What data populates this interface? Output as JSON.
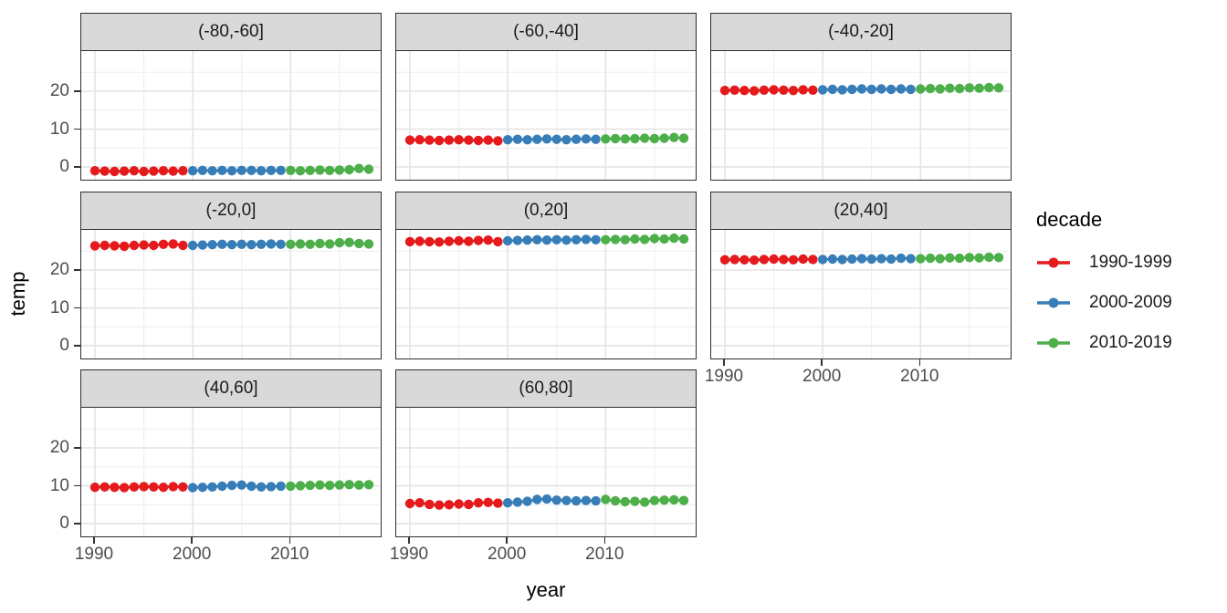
{
  "chart_data": {
    "type": "scatter",
    "title": "",
    "xlabel": "year",
    "ylabel": "temp",
    "x_ticks": [
      1990,
      2000,
      2010
    ],
    "y_ticks": [
      0,
      10,
      20
    ],
    "x_minor_ticks": [
      1995,
      2005,
      2015
    ],
    "y_minor_ticks": [
      5,
      15,
      25
    ],
    "x_domain": [
      1988.6,
      2019.4
    ],
    "y_domain": [
      -3.6,
      30.6
    ],
    "grid": true,
    "legend": {
      "title": "decade",
      "position": "right",
      "entries": [
        {
          "label": "1990-1999",
          "color": "#E41A1C",
          "from": 1990,
          "to": 1999
        },
        {
          "label": "2000-2009",
          "color": "#377EB8",
          "from": 2000,
          "to": 2009
        },
        {
          "label": "2010-2019",
          "color": "#4DAF4A",
          "from": 2010,
          "to": 2019
        }
      ]
    },
    "x": [
      1990,
      1991,
      1992,
      1993,
      1994,
      1995,
      1996,
      1997,
      1998,
      1999,
      2000,
      2001,
      2002,
      2003,
      2004,
      2005,
      2006,
      2007,
      2008,
      2009,
      2010,
      2011,
      2012,
      2013,
      2014,
      2015,
      2016,
      2017,
      2018
    ],
    "facets": [
      {
        "label": "(-80,-60]",
        "row": 0,
        "col": 0,
        "show_x_axis": false,
        "show_y_axis": true,
        "values": [
          -1.0,
          -1.1,
          -1.2,
          -1.1,
          -1.0,
          -1.2,
          -1.1,
          -1.0,
          -1.1,
          -1.0,
          -1.0,
          -0.9,
          -1.0,
          -0.9,
          -1.0,
          -0.9,
          -0.9,
          -1.0,
          -0.9,
          -0.9,
          -0.9,
          -1.0,
          -0.9,
          -0.8,
          -0.9,
          -0.8,
          -0.7,
          -0.4,
          -0.6
        ]
      },
      {
        "label": "(-60,-40]",
        "row": 0,
        "col": 1,
        "show_x_axis": false,
        "show_y_axis": false,
        "values": [
          7.1,
          7.2,
          7.1,
          7.0,
          7.1,
          7.2,
          7.1,
          7.0,
          7.1,
          6.9,
          7.2,
          7.3,
          7.2,
          7.3,
          7.4,
          7.3,
          7.2,
          7.3,
          7.4,
          7.3,
          7.4,
          7.5,
          7.4,
          7.5,
          7.6,
          7.5,
          7.6,
          7.8,
          7.6
        ]
      },
      {
        "label": "(-40,-20]",
        "row": 0,
        "col": 2,
        "show_x_axis": false,
        "show_y_axis": false,
        "values": [
          20.2,
          20.3,
          20.2,
          20.1,
          20.3,
          20.4,
          20.3,
          20.2,
          20.4,
          20.3,
          20.4,
          20.5,
          20.4,
          20.5,
          20.6,
          20.5,
          20.6,
          20.5,
          20.6,
          20.5,
          20.6,
          20.7,
          20.6,
          20.8,
          20.7,
          20.9,
          20.8,
          21.0,
          20.9
        ]
      },
      {
        "label": "(-20,0]",
        "row": 1,
        "col": 0,
        "show_x_axis": false,
        "show_y_axis": true,
        "values": [
          26.4,
          26.5,
          26.4,
          26.3,
          26.5,
          26.6,
          26.5,
          26.8,
          26.9,
          26.5,
          26.5,
          26.6,
          26.7,
          26.8,
          26.7,
          26.8,
          26.7,
          26.8,
          26.9,
          26.8,
          26.8,
          26.9,
          26.8,
          27.0,
          26.9,
          27.2,
          27.3,
          27.0,
          26.9
        ]
      },
      {
        "label": "(0,20]",
        "row": 1,
        "col": 1,
        "show_x_axis": false,
        "show_y_axis": false,
        "values": [
          27.5,
          27.6,
          27.5,
          27.4,
          27.6,
          27.7,
          27.6,
          27.8,
          27.9,
          27.5,
          27.7,
          27.8,
          27.9,
          28.0,
          27.9,
          28.0,
          27.9,
          28.0,
          28.1,
          28.0,
          28.0,
          28.1,
          28.0,
          28.2,
          28.1,
          28.3,
          28.2,
          28.4,
          28.2
        ]
      },
      {
        "label": "(20,40]",
        "row": 1,
        "col": 2,
        "show_x_axis": true,
        "show_y_axis": false,
        "values": [
          22.7,
          22.8,
          22.7,
          22.6,
          22.8,
          22.9,
          22.8,
          22.7,
          22.9,
          22.8,
          22.8,
          22.9,
          22.8,
          22.9,
          23.0,
          22.9,
          23.0,
          22.9,
          23.1,
          23.0,
          23.0,
          23.1,
          23.0,
          23.2,
          23.1,
          23.3,
          23.2,
          23.4,
          23.3
        ]
      },
      {
        "label": "(40,60]",
        "row": 2,
        "col": 0,
        "show_x_axis": true,
        "show_y_axis": true,
        "values": [
          9.6,
          9.7,
          9.6,
          9.5,
          9.7,
          9.8,
          9.7,
          9.6,
          9.8,
          9.7,
          9.5,
          9.6,
          9.7,
          9.9,
          10.1,
          10.2,
          9.9,
          9.7,
          9.8,
          9.9,
          9.9,
          10.0,
          10.1,
          10.2,
          10.1,
          10.2,
          10.3,
          10.2,
          10.3
        ]
      },
      {
        "label": "(60,80]",
        "row": 2,
        "col": 1,
        "show_x_axis": true,
        "show_y_axis": false,
        "values": [
          5.3,
          5.5,
          5.1,
          4.9,
          5.0,
          5.2,
          5.1,
          5.5,
          5.6,
          5.4,
          5.5,
          5.7,
          5.9,
          6.4,
          6.5,
          6.2,
          6.1,
          6.0,
          6.1,
          6.0,
          6.4,
          6.0,
          5.8,
          5.9,
          5.7,
          6.1,
          6.2,
          6.3,
          6.1
        ]
      }
    ],
    "style": {
      "panel_background": "#ffffff",
      "strip_background": "#d9d9d9",
      "border_color": "#2e2e2e",
      "grid_major_color": "#e4e4e4",
      "grid_minor_color": "#efefef",
      "axis_text_color": "#4d4d4d",
      "point_radius": 5.2,
      "line_width": 2.6
    }
  }
}
